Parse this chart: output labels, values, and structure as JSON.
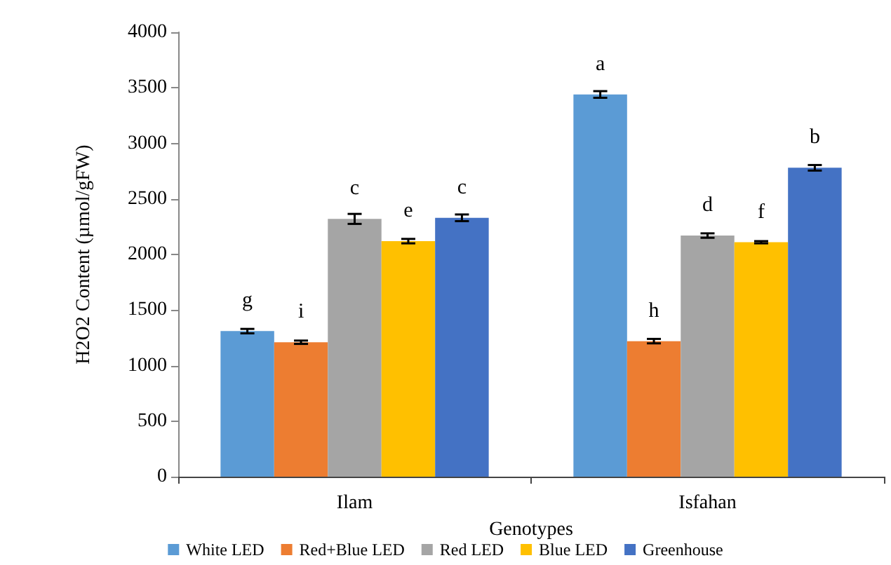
{
  "chart_data": {
    "type": "bar",
    "xlabel": "Genotypes",
    "ylabel": "H2O2 Content (µmol/gFW)",
    "categories": [
      "Ilam",
      "Isfahan"
    ],
    "series": [
      {
        "name": "White LED",
        "color": "#5b9bd5",
        "values": [
          1310,
          3440
        ],
        "errors": [
          20,
          30
        ],
        "value_labels": [
          "g",
          "a"
        ]
      },
      {
        "name": "Red+Blue LED",
        "color": "#ed7d31",
        "values": [
          1210,
          1220
        ],
        "errors": [
          15,
          20
        ],
        "value_labels": [
          "i",
          "h"
        ]
      },
      {
        "name": "Red LED",
        "color": "#a5a5a5",
        "values": [
          2320,
          2170
        ],
        "errors": [
          45,
          20
        ],
        "value_labels": [
          "c",
          "d"
        ]
      },
      {
        "name": "Blue LED",
        "color": "#ffc000",
        "values": [
          2120,
          2110
        ],
        "errors": [
          20,
          10
        ],
        "value_labels": [
          "e",
          "f"
        ]
      },
      {
        "name": "Greenhouse",
        "color": "#4472c4",
        "values": [
          2330,
          2780
        ],
        "errors": [
          30,
          25
        ],
        "value_labels": [
          "c",
          "b"
        ]
      }
    ],
    "ylim": [
      0,
      4000
    ],
    "yticks": [
      0,
      500,
      1000,
      1500,
      2000,
      2500,
      3000,
      3500,
      4000
    ],
    "grid": false,
    "legend": "bottom"
  }
}
